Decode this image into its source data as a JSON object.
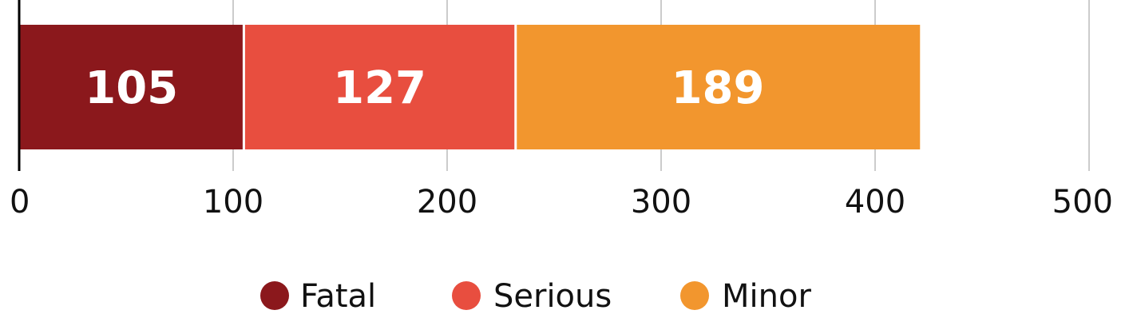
{
  "chart_data": {
    "type": "bar",
    "orientation": "horizontal",
    "stacked": true,
    "title": "",
    "xlabel": "",
    "ylabel": "",
    "xlim": [
      0,
      500
    ],
    "x_ticks": [
      "0",
      "100",
      "200",
      "300",
      "400",
      "500"
    ],
    "grid": true,
    "legend_position": "bottom-center",
    "series": [
      {
        "name": "Fatal",
        "values": [
          105
        ],
        "color": "#8B181C"
      },
      {
        "name": "Serious",
        "values": [
          127
        ],
        "color": "#E84E3F"
      },
      {
        "name": "Minor",
        "values": [
          189
        ],
        "color": "#F2962E"
      }
    ]
  }
}
